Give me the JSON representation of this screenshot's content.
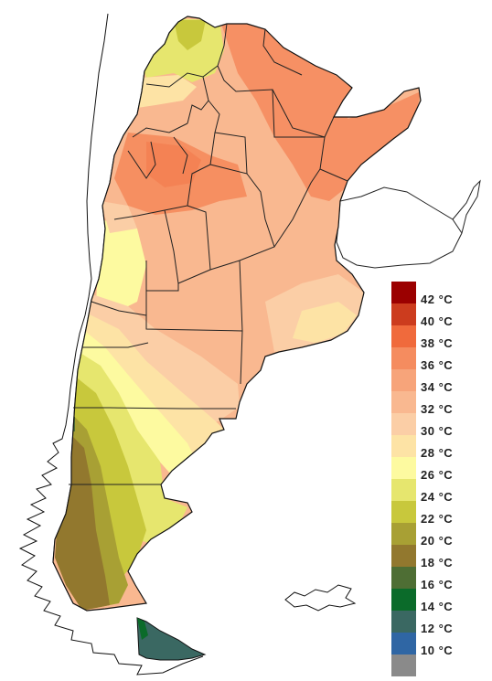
{
  "map": {
    "region": "Argentina",
    "color_scale": [
      {
        "label": "42 °C",
        "color": "#9b0000"
      },
      {
        "label": "40 °C",
        "color": "#cc3c1e"
      },
      {
        "label": "38 °C",
        "color": "#f06a3c"
      },
      {
        "label": "36 °C",
        "color": "#f58c5f"
      },
      {
        "label": "34 °C",
        "color": "#f7a47a"
      },
      {
        "label": "32 °C",
        "color": "#f9b890"
      },
      {
        "label": "30 °C",
        "color": "#fbcea6"
      },
      {
        "label": "28 °C",
        "color": "#fde3a5"
      },
      {
        "label": "26 °C",
        "color": "#fdfaa0"
      },
      {
        "label": "24 °C",
        "color": "#e6e66e"
      },
      {
        "label": "22 °C",
        "color": "#c8c83c"
      },
      {
        "label": "20 °C",
        "color": "#a8a034"
      },
      {
        "label": "18 °C",
        "color": "#92782e"
      },
      {
        "label": "16 °C",
        "color": "#4e6e34"
      },
      {
        "label": "14 °C",
        "color": "#0b6b2a"
      },
      {
        "label": "12 °C",
        "color": "#3a6862"
      },
      {
        "label": "10 °C",
        "color": "#2f66a4"
      },
      {
        "label": "",
        "color": "#8a8a8a"
      }
    ]
  }
}
